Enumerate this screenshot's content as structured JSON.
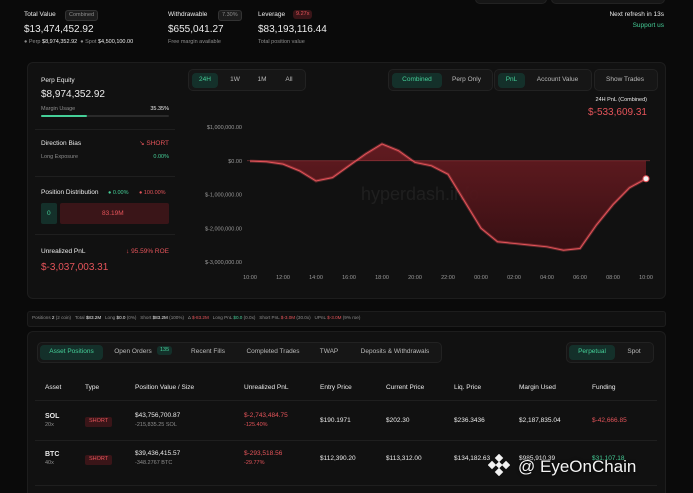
{
  "header": {
    "total_value": {
      "label": "Total Value",
      "badge": "Combined",
      "value": "$13,474,452.92",
      "perp_label": "Perp",
      "perp": "$8,974,352.92",
      "spot_label": "Spot",
      "spot": "$4,500,100.00"
    },
    "withdrawable": {
      "label": "Withdrawable",
      "badge": "7.30%",
      "value": "$655,041.27",
      "note": "Free margin available"
    },
    "leverage": {
      "label": "Leverage",
      "badge": "9.27x",
      "value": "$83,193,116.44",
      "note": "Total position value"
    },
    "refresh": "Next refresh in 13s",
    "support": "Support us"
  },
  "account": {
    "perp_equity": {
      "label": "Perp Equity",
      "value": "$8,974,352.92",
      "margin_label": "Margin Usage",
      "margin": "35.35%"
    },
    "direction": {
      "label": "Direction Bias",
      "value": "SHORT",
      "exposure_label": "Long Exposure",
      "exposure": "0.00%"
    },
    "distribution": {
      "label": "Position Distribution",
      "long": "0.00%",
      "short": "100.00%",
      "long_bar": "0",
      "short_bar": "83.19M"
    },
    "upnl": {
      "label": "Unrealized PnL",
      "roe": "95.59% ROE",
      "value": "$-3,037,003.31"
    }
  },
  "pnl_chart": {
    "type": "area",
    "ranges": [
      "24H",
      "1W",
      "1M",
      "All"
    ],
    "scopes": [
      "Combined",
      "Perp Only"
    ],
    "metrics": [
      "PnL",
      "Account Value"
    ],
    "trades_button": "Show Trades",
    "title": "24H PnL (Combined)",
    "current": "$-533,609.31",
    "watermark": "hyperdash.info",
    "color": "#e5545a",
    "categories": [
      "10:00",
      null,
      "12:00",
      null,
      "14:00",
      null,
      "16:00",
      null,
      "18:00",
      null,
      "20:00",
      null,
      "22:00",
      null,
      "00:00",
      null,
      "02:00",
      null,
      "04:00",
      null,
      "06:00",
      null,
      "08:00",
      null,
      "10:00"
    ],
    "values": [
      -10000,
      -30000,
      -100000,
      -300000,
      -600000,
      -500000,
      -150000,
      200000,
      500000,
      300000,
      -50000,
      -150000,
      -400000,
      -1200000,
      -2000000,
      -2400000,
      -2450000,
      -2500000,
      -2550000,
      -2650000,
      -2600000,
      -1900000,
      -1300000,
      -800000,
      -533609.31
    ],
    "ylim": [
      -3200000,
      1200000
    ],
    "yticks": [
      {
        "value": 1000000,
        "label": "$1,000,000.00"
      },
      {
        "value": 0,
        "label": "$0.00"
      },
      {
        "value": -1000000,
        "label": "$-1,000,000.00"
      },
      {
        "value": -2000000,
        "label": "$-2,000,000.00"
      },
      {
        "value": -3000000,
        "label": "$-3,000,000.00"
      }
    ],
    "grid": false
  },
  "summary": {
    "positions": {
      "label": "Positions",
      "value": "2",
      "note": "(2 coin)"
    },
    "total": {
      "label": "Total",
      "value": "$83.2M"
    },
    "long": {
      "label": "Long",
      "value": "$0.0",
      "note": "(0%)"
    },
    "short": {
      "label": "Short",
      "value": "$83.2M",
      "note": "(100%)"
    },
    "delta": {
      "label": "Δ",
      "value": "$-83.2M"
    },
    "long_pnl": {
      "label": "Long PnL",
      "value": "$0.0",
      "note": "(0.0x)"
    },
    "short_pnl": {
      "label": "Short PnL",
      "value": "$-3.0M",
      "note": "(30.0x)"
    },
    "upnl": {
      "label": "UPnL",
      "value": "$-3.0M",
      "note": "(9% roe)"
    }
  },
  "positions": {
    "tabs": [
      "Asset Positions",
      "Open Orders",
      "Recent Fills",
      "Completed Trades",
      "TWAP",
      "Deposits & Withdrawals"
    ],
    "orders_badge": "135",
    "markets": [
      "Perpetual",
      "Spot"
    ],
    "columns": [
      "Asset",
      "Type",
      "Position Value / Size",
      "Unrealized PnL",
      "Entry Price",
      "Current Price",
      "Liq. Price",
      "Margin Used",
      "Funding"
    ],
    "rows": [
      {
        "asset": "SOL",
        "leverage": "20x",
        "type": "SHORT",
        "position_value": "$43,756,700.87",
        "size": "-215,835.25 SOL",
        "unrealized_pnl": "$-2,743,484.75",
        "pnl_pct": "-125.40%",
        "entry_price": "$190.1971",
        "current_price": "$202.30",
        "liq_price": "$236.3436",
        "margin_used": "$2,187,835.04",
        "funding": "$-42,666.85"
      },
      {
        "asset": "BTC",
        "leverage": "40x",
        "type": "SHORT",
        "position_value": "$39,436,415.57",
        "size": "-348.2767 BTC",
        "unrealized_pnl": "$-293,518.56",
        "pnl_pct": "-29.77%",
        "entry_price": "$112,390.20",
        "current_price": "$113,312.00",
        "liq_price": "$134,182.63",
        "margin_used": "$985,910.39",
        "funding": "$31,107.18"
      }
    ]
  },
  "watermark": "@ EyeOnChain"
}
